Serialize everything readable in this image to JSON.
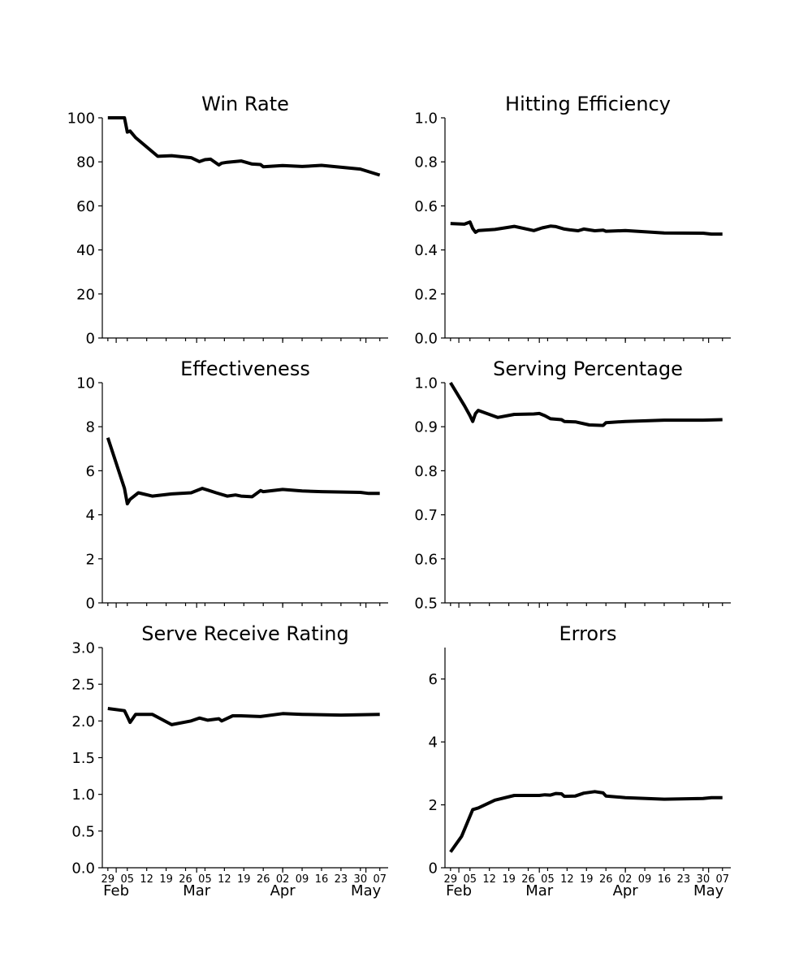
{
  "chart_data": [
    {
      "type": "line",
      "title": "Win Rate",
      "ylim": [
        0,
        100
      ],
      "yticks": [
        "0",
        "20",
        "40",
        "60",
        "80",
        "100"
      ],
      "x": [
        "2024-01-29",
        "2024-02-04",
        "2024-02-05",
        "2024-02-06",
        "2024-02-08",
        "2024-02-16",
        "2024-02-21",
        "2024-02-28",
        "2024-03-02",
        "2024-03-04",
        "2024-03-06",
        "2024-03-09",
        "2024-03-10",
        "2024-03-12",
        "2024-03-17",
        "2024-03-21",
        "2024-03-24",
        "2024-03-25",
        "2024-04-01",
        "2024-04-08",
        "2024-04-15",
        "2024-04-29",
        "2024-05-06"
      ],
      "series": [
        {
          "values": [
            100,
            100,
            93.5,
            94,
            91,
            82.5,
            82.8,
            81.9,
            80.1,
            81,
            81.2,
            78.6,
            79.4,
            79.8,
            80.4,
            79,
            78.8,
            77.8,
            78.3,
            77.9,
            78.4,
            76.7,
            74
          ]
        }
      ]
    },
    {
      "type": "line",
      "title": "Hitting Efficiency",
      "ylim": [
        0,
        1
      ],
      "yticks": [
        "0.0",
        "0.2",
        "0.4",
        "0.6",
        "0.8",
        "1.0"
      ],
      "x": [
        "2024-01-29",
        "2024-02-03",
        "2024-02-05",
        "2024-02-06",
        "2024-02-07",
        "2024-02-08",
        "2024-02-14",
        "2024-02-21",
        "2024-02-28",
        "2024-03-02",
        "2024-03-05",
        "2024-03-07",
        "2024-03-10",
        "2024-03-12",
        "2024-03-15",
        "2024-03-17",
        "2024-03-21",
        "2024-03-24",
        "2024-03-25",
        "2024-04-01",
        "2024-04-15",
        "2024-04-29",
        "2024-05-02",
        "2024-05-06"
      ],
      "series": [
        {
          "values": [
            0.52,
            0.517,
            0.527,
            0.497,
            0.48,
            0.488,
            0.493,
            0.507,
            0.488,
            0.5,
            0.508,
            0.506,
            0.495,
            0.491,
            0.487,
            0.495,
            0.487,
            0.49,
            0.485,
            0.488,
            0.477,
            0.476,
            0.472,
            0.472
          ]
        }
      ]
    },
    {
      "type": "line",
      "title": "Effectiveness",
      "ylim": [
        0,
        10
      ],
      "yticks": [
        "0",
        "2",
        "4",
        "6",
        "8",
        "10"
      ],
      "x": [
        "2024-01-29",
        "2024-02-04",
        "2024-02-05",
        "2024-02-06",
        "2024-02-09",
        "2024-02-14",
        "2024-02-21",
        "2024-02-28",
        "2024-03-03",
        "2024-03-05",
        "2024-03-08",
        "2024-03-12",
        "2024-03-15",
        "2024-03-17",
        "2024-03-21",
        "2024-03-24",
        "2024-03-25",
        "2024-04-01",
        "2024-04-08",
        "2024-04-15",
        "2024-04-29",
        "2024-05-02",
        "2024-05-06"
      ],
      "series": [
        {
          "values": [
            7.5,
            5.2,
            4.5,
            4.7,
            5.0,
            4.85,
            4.95,
            5.0,
            5.2,
            5.12,
            5.0,
            4.85,
            4.9,
            4.85,
            4.82,
            5.1,
            5.05,
            5.15,
            5.08,
            5.05,
            5.02,
            4.97,
            4.97
          ]
        }
      ]
    },
    {
      "type": "line",
      "title": "Serving Percentage",
      "ylim": [
        0.5,
        1.0
      ],
      "yticks": [
        "0.5",
        "0.6",
        "0.7",
        "0.8",
        "0.9",
        "1.0"
      ],
      "x": [
        "2024-01-29",
        "2024-02-03",
        "2024-02-05",
        "2024-02-06",
        "2024-02-07",
        "2024-02-08",
        "2024-02-15",
        "2024-02-21",
        "2024-02-28",
        "2024-03-01",
        "2024-03-03",
        "2024-03-05",
        "2024-03-09",
        "2024-03-10",
        "2024-03-14",
        "2024-03-19",
        "2024-03-24",
        "2024-03-25",
        "2024-04-01",
        "2024-04-15",
        "2024-04-29",
        "2024-05-06"
      ],
      "series": [
        {
          "values": [
            1.0,
            0.948,
            0.925,
            0.912,
            0.93,
            0.937,
            0.921,
            0.928,
            0.929,
            0.93,
            0.925,
            0.918,
            0.916,
            0.912,
            0.911,
            0.904,
            0.903,
            0.909,
            0.912,
            0.915,
            0.915,
            0.916
          ]
        }
      ]
    },
    {
      "type": "line",
      "title": "Serve Receive Rating",
      "ylim": [
        0,
        3
      ],
      "yticks": [
        "0.0",
        "0.5",
        "1.0",
        "1.5",
        "2.0",
        "2.5",
        "3.0"
      ],
      "x": [
        "2024-01-29",
        "2024-02-04",
        "2024-02-05",
        "2024-02-06",
        "2024-02-08",
        "2024-02-14",
        "2024-02-17",
        "2024-02-21",
        "2024-02-28",
        "2024-03-02",
        "2024-03-05",
        "2024-03-09",
        "2024-03-10",
        "2024-03-14",
        "2024-03-17",
        "2024-03-24",
        "2024-04-01",
        "2024-04-08",
        "2024-04-22",
        "2024-05-06"
      ],
      "series": [
        {
          "values": [
            2.17,
            2.14,
            2.06,
            1.98,
            2.09,
            2.09,
            2.03,
            1.95,
            2.0,
            2.04,
            2.01,
            2.03,
            2.0,
            2.07,
            2.07,
            2.06,
            2.1,
            2.09,
            2.08,
            2.09
          ]
        }
      ]
    },
    {
      "type": "line",
      "title": "Errors",
      "ylim": [
        0,
        7
      ],
      "yticks": [
        "0",
        "2",
        "4",
        "6"
      ],
      "x": [
        "2024-01-29",
        "2024-02-02",
        "2024-02-06",
        "2024-02-08",
        "2024-02-14",
        "2024-02-21",
        "2024-02-28",
        "2024-03-01",
        "2024-03-03",
        "2024-03-05",
        "2024-03-07",
        "2024-03-09",
        "2024-03-10",
        "2024-03-14",
        "2024-03-17",
        "2024-03-21",
        "2024-03-24",
        "2024-03-25",
        "2024-04-01",
        "2024-04-15",
        "2024-04-29",
        "2024-05-02",
        "2024-05-06"
      ],
      "series": [
        {
          "values": [
            0.5,
            1.0,
            1.85,
            1.9,
            2.15,
            2.3,
            2.3,
            2.3,
            2.32,
            2.31,
            2.36,
            2.35,
            2.27,
            2.28,
            2.37,
            2.42,
            2.38,
            2.28,
            2.23,
            2.18,
            2.2,
            2.23,
            2.23
          ]
        }
      ]
    }
  ],
  "x_axis": {
    "day_ticks": [
      {
        "date": "2024-01-29",
        "label": "29"
      },
      {
        "date": "2024-02-05",
        "label": "05"
      },
      {
        "date": "2024-02-12",
        "label": "12"
      },
      {
        "date": "2024-02-19",
        "label": "19"
      },
      {
        "date": "2024-02-26",
        "label": "26"
      },
      {
        "date": "2024-03-04",
        "label": "05"
      },
      {
        "date": "2024-03-11",
        "label": "12"
      },
      {
        "date": "2024-03-18",
        "label": "19"
      },
      {
        "date": "2024-03-25",
        "label": "26"
      },
      {
        "date": "2024-04-01",
        "label": "02"
      },
      {
        "date": "2024-04-08",
        "label": "09"
      },
      {
        "date": "2024-04-15",
        "label": "16"
      },
      {
        "date": "2024-04-22",
        "label": "23"
      },
      {
        "date": "2024-04-29",
        "label": "30"
      },
      {
        "date": "2024-05-06",
        "label": "07"
      }
    ],
    "month_ticks": [
      {
        "date": "2024-02-01",
        "label": "Feb"
      },
      {
        "date": "2024-03-01",
        "label": "Mar"
      },
      {
        "date": "2024-04-01",
        "label": "Apr"
      },
      {
        "date": "2024-05-01",
        "label": "May"
      }
    ],
    "xlim": [
      "2024-01-27",
      "2024-05-09"
    ]
  },
  "colors": {
    "line": "#000000",
    "axis": "#000000",
    "background": "#ffffff"
  }
}
